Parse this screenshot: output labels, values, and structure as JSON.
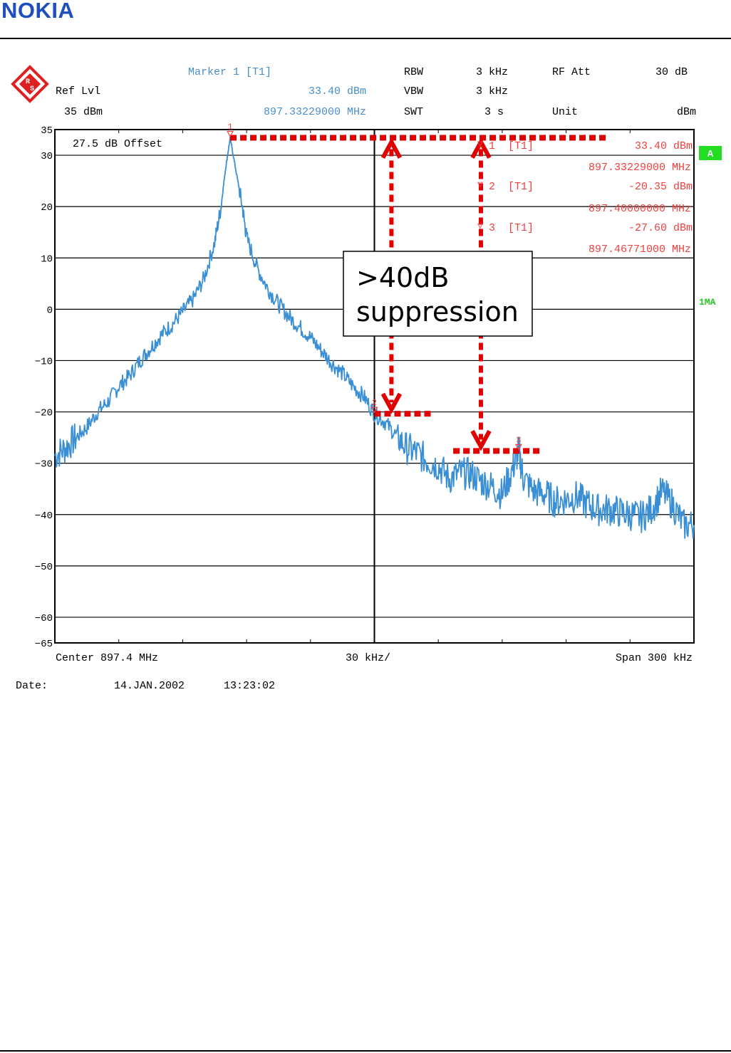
{
  "brand": {
    "name": "NOKIA"
  },
  "instrument": {
    "logo": "rohde-schwarz-logo",
    "marker_title": "Marker 1 [T1]",
    "ref_lvl_label": "Ref Lvl",
    "ref_lvl_value": "35 dBm",
    "marker_level": "33.40 dBm",
    "marker_freq": "897.33229000 MHz",
    "rbw_label": "RBW",
    "rbw_value": "3 kHz",
    "vbw_label": "VBW",
    "vbw_value": "3 kHz",
    "swt_label": "SWT",
    "swt_value": "3 s",
    "rf_att_label": "RF Att",
    "rf_att_value": "30 dB",
    "unit_label": "Unit",
    "unit_value": "dBm",
    "offset_note": "27.5 dB Offset",
    "trace_badge": "A",
    "trace_mode": "1MA",
    "center": "Center 897.4 MHz",
    "div": "30 kHz/",
    "span": "Span 300 kHz",
    "date_label": "Date:",
    "date_value": "14.JAN.2002",
    "time_value": "13:23:02"
  },
  "annotation": {
    "line1": ">40dB",
    "line2": "suppression"
  },
  "markers": [
    {
      "num": "1",
      "label": "[T1]",
      "level": "33.40 dBm",
      "freq": "897.33229000 MHz"
    },
    {
      "num": "2",
      "label": "[T1]",
      "level": "-20.35 dBm",
      "freq": "897.40000000 MHz"
    },
    {
      "num": "3",
      "label": "[T1]",
      "level": "-27.60 dBm",
      "freq": "897.46771000 MHz"
    }
  ],
  "colors": {
    "trace": "#3a8fd4",
    "marker": "#f04040",
    "dash": "#e00000",
    "header_blue": "#4a8ec8",
    "badge": "#22dd22"
  },
  "chart_data": {
    "type": "line",
    "title": "",
    "xlabel": "",
    "ylabel": "",
    "x_unit": "MHz",
    "y_unit": "dBm",
    "xlim": [
      897.25,
      897.55
    ],
    "ylim": [
      -65,
      35
    ],
    "yticks": [
      35,
      30,
      20,
      10,
      0,
      -10,
      -20,
      -30,
      -40,
      -50,
      -60,
      -65
    ],
    "grid": true,
    "series": [
      {
        "x": [
          897.25,
          897.255,
          897.26,
          897.265,
          897.27,
          897.275,
          897.28,
          897.285,
          897.29,
          897.295,
          897.3,
          897.305,
          897.31,
          897.315,
          897.32,
          897.325,
          897.328,
          897.33,
          897.3323,
          897.335,
          897.338,
          897.34,
          897.345,
          897.35,
          897.355,
          897.36,
          897.365,
          897.37,
          897.375,
          897.38,
          897.385,
          897.39,
          897.395,
          897.4,
          897.405,
          897.41,
          897.415,
          897.42,
          897.425,
          897.43,
          897.435,
          897.44,
          897.445,
          897.45,
          897.455,
          897.46,
          897.465,
          897.4677,
          897.47,
          897.475,
          897.48,
          897.485,
          897.49,
          897.495,
          897.5,
          897.505,
          897.51,
          897.515,
          897.52,
          897.525,
          897.53,
          897.535,
          897.54,
          897.545,
          897.55
        ],
        "y": [
          -28.5,
          -27,
          -25,
          -23,
          -20,
          -18,
          -15,
          -13,
          -10,
          -7.5,
          -5,
          -3,
          -0.5,
          2,
          6,
          13,
          20,
          27,
          33.4,
          27,
          20,
          14,
          8,
          4,
          1,
          -1.5,
          -3.5,
          -5.5,
          -8,
          -10.5,
          -12.5,
          -15,
          -17,
          -20.35,
          -22,
          -24.5,
          -27,
          -28,
          -29.5,
          -30.5,
          -33,
          -32,
          -32,
          -33.5,
          -34.5,
          -36,
          -31,
          -27.6,
          -33,
          -35.5,
          -36,
          -37.5,
          -37,
          -36.5,
          -38,
          -39,
          -39,
          -39.5,
          -40,
          -40.5,
          -39,
          -35.5,
          -38,
          -42,
          -42
        ]
      }
    ],
    "marker_lines": [
      {
        "from_x": 897.3323,
        "to_x": 897.51,
        "y": 33.4
      },
      {
        "from_x": 897.4,
        "to_x": 897.427,
        "y": -20.35
      },
      {
        "from_x": 897.437,
        "to_x": 897.4787,
        "y": -27.6
      }
    ],
    "arrows": [
      {
        "x": 897.408,
        "y_top": 33.4,
        "y_bottom": -20.35
      },
      {
        "x": 897.45,
        "y_top": 33.4,
        "y_bottom": -27.6
      }
    ]
  }
}
